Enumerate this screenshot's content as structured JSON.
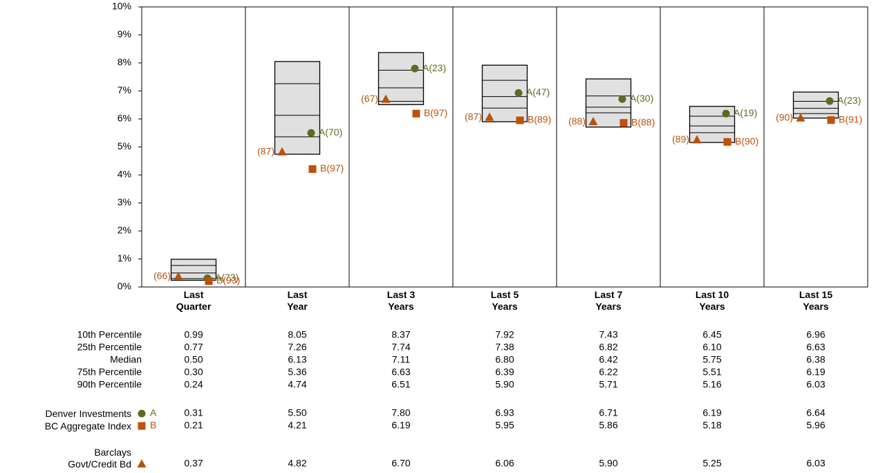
{
  "chart_data": {
    "type": "box",
    "categories": [
      "Last Quarter",
      "Last Year",
      "Last 3 Years",
      "Last 5 Years",
      "Last 7 Years",
      "Last 10 Years",
      "Last 15 Years"
    ],
    "ylim": [
      0,
      10
    ],
    "yticks": [
      {
        "value": 0,
        "label": "0%"
      },
      {
        "value": 1,
        "label": "1%"
      },
      {
        "value": 2,
        "label": "2%"
      },
      {
        "value": 3,
        "label": "3%"
      },
      {
        "value": 4,
        "label": "4%"
      },
      {
        "value": 5,
        "label": "5%"
      },
      {
        "value": 6,
        "label": "6%"
      },
      {
        "value": 7,
        "label": "7%"
      },
      {
        "value": 8,
        "label": "8%"
      },
      {
        "value": 9,
        "label": "9%"
      },
      {
        "value": 10,
        "label": "10%"
      }
    ],
    "box_color": "#e0e0e0",
    "percentiles": [
      {
        "name": "10th Percentile",
        "values": [
          0.99,
          8.05,
          8.37,
          7.92,
          7.43,
          6.45,
          6.96
        ],
        "value_labels": [
          "0.99",
          "8.05",
          "8.37",
          "7.92",
          "7.43",
          "6.45",
          "6.96"
        ]
      },
      {
        "name": "25th Percentile",
        "values": [
          0.77,
          7.26,
          7.74,
          7.38,
          6.82,
          6.1,
          6.63
        ],
        "value_labels": [
          "0.77",
          "7.26",
          "7.74",
          "7.38",
          "6.82",
          "6.10",
          "6.63"
        ]
      },
      {
        "name": "Median",
        "values": [
          0.5,
          6.13,
          7.11,
          6.8,
          6.42,
          5.75,
          6.38
        ],
        "value_labels": [
          "0.50",
          "6.13",
          "7.11",
          "6.80",
          "6.42",
          "5.75",
          "6.38"
        ]
      },
      {
        "name": "75th Percentile",
        "values": [
          0.3,
          5.36,
          6.63,
          6.39,
          6.22,
          5.51,
          6.19
        ],
        "value_labels": [
          "0.30",
          "5.36",
          "6.63",
          "6.39",
          "6.22",
          "5.51",
          "6.19"
        ]
      },
      {
        "name": "90th Percentile",
        "values": [
          0.24,
          4.74,
          6.51,
          5.9,
          5.71,
          5.16,
          6.03
        ],
        "value_labels": [
          "0.24",
          "4.74",
          "6.51",
          "5.90",
          "5.71",
          "5.16",
          "6.03"
        ]
      }
    ],
    "series": [
      {
        "name": "Denver Investments",
        "letter": "A",
        "marker": "circle",
        "color": "#5c6b1f",
        "values": [
          0.31,
          5.5,
          7.8,
          6.93,
          6.71,
          6.19,
          6.64
        ],
        "value_labels": [
          "0.31",
          "5.50",
          "7.80",
          "6.93",
          "6.71",
          "6.19",
          "6.64"
        ],
        "rank_labels": [
          "A(73)",
          "A(70)",
          "A(23)",
          "A(47)",
          "A(30)",
          "A(19)",
          "A(23)"
        ]
      },
      {
        "name": "BC Aggregate Index",
        "letter": "B",
        "marker": "square",
        "color": "#c0500a",
        "values": [
          0.21,
          4.21,
          6.19,
          5.95,
          5.86,
          5.18,
          5.96
        ],
        "value_labels": [
          "0.21",
          "4.21",
          "6.19",
          "5.95",
          "5.86",
          "5.18",
          "5.96"
        ],
        "rank_labels": [
          "B(93)",
          "B(97)",
          "B(97)",
          "B(89)",
          "B(88)",
          "B(90)",
          "B(91)"
        ]
      },
      {
        "name": "Barclays Govt/Credit Bd",
        "marker": "triangle",
        "color": "#b5530c",
        "values": [
          0.37,
          4.82,
          6.7,
          6.06,
          5.9,
          5.25,
          6.03
        ],
        "value_labels": [
          "0.37",
          "4.82",
          "6.70",
          "6.06",
          "5.90",
          "5.25",
          "6.03"
        ],
        "rank_labels": [
          "(66)",
          "(87)",
          "(67)",
          "(87)",
          "(88)",
          "(89)",
          "(90)"
        ]
      }
    ]
  }
}
